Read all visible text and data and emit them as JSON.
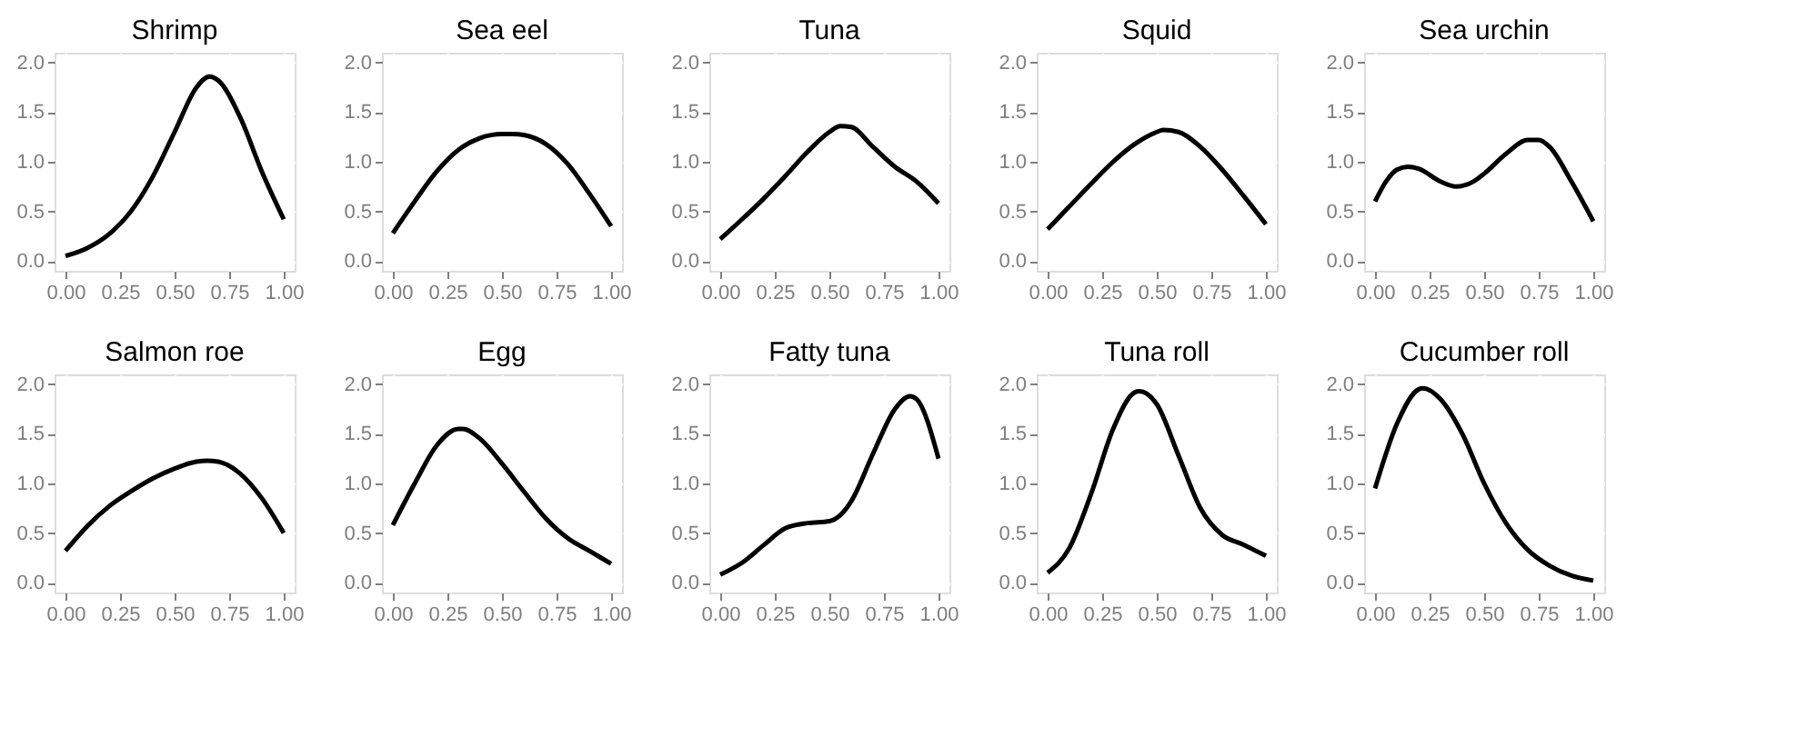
{
  "chart_data": [
    {
      "type": "line",
      "title": "Shrimp",
      "color": "#000000",
      "grid": true,
      "xlim": [
        -0.05,
        1.05
      ],
      "ylim": [
        -0.1,
        2.1
      ],
      "xticks": [
        {
          "value": 0,
          "label": "0.00"
        },
        {
          "value": 0.25,
          "label": "0.25"
        },
        {
          "value": 0.5,
          "label": "0.50"
        },
        {
          "value": 0.75,
          "label": "0.75"
        },
        {
          "value": 1,
          "label": "1.00"
        }
      ],
      "yticks": [
        {
          "value": 0,
          "label": "0.0"
        },
        {
          "value": 0.5,
          "label": "0.5"
        },
        {
          "value": 1,
          "label": "1.0"
        },
        {
          "value": 1.5,
          "label": "1.5"
        },
        {
          "value": 2,
          "label": "2.0"
        }
      ],
      "x": [
        0,
        0.1,
        0.2,
        0.3,
        0.4,
        0.5,
        0.6,
        0.66,
        0.7,
        0.8,
        0.9,
        1.0
      ],
      "values": [
        0.05,
        0.13,
        0.27,
        0.5,
        0.85,
        1.3,
        1.75,
        1.86,
        1.82,
        1.45,
        0.9,
        0.42
      ]
    },
    {
      "type": "line",
      "title": "Sea eel",
      "color": "#000000",
      "grid": true,
      "xlim": [
        -0.05,
        1.05
      ],
      "ylim": [
        -0.1,
        2.1
      ],
      "xticks": [
        {
          "value": 0,
          "label": "0.00"
        },
        {
          "value": 0.25,
          "label": "0.25"
        },
        {
          "value": 0.5,
          "label": "0.50"
        },
        {
          "value": 0.75,
          "label": "0.75"
        },
        {
          "value": 1,
          "label": "1.00"
        }
      ],
      "yticks": [
        {
          "value": 0,
          "label": "0.0"
        },
        {
          "value": 0.5,
          "label": "0.5"
        },
        {
          "value": 1,
          "label": "1.0"
        },
        {
          "value": 1.5,
          "label": "1.5"
        },
        {
          "value": 2,
          "label": "2.0"
        }
      ],
      "x": [
        0,
        0.1,
        0.2,
        0.3,
        0.4,
        0.5,
        0.55,
        0.6,
        0.7,
        0.8,
        0.9,
        1.0
      ],
      "values": [
        0.28,
        0.6,
        0.9,
        1.12,
        1.24,
        1.28,
        1.28,
        1.27,
        1.18,
        0.98,
        0.68,
        0.35
      ]
    },
    {
      "type": "line",
      "title": "Tuna",
      "color": "#000000",
      "grid": true,
      "xlim": [
        -0.05,
        1.05
      ],
      "ylim": [
        -0.1,
        2.1
      ],
      "xticks": [
        {
          "value": 0,
          "label": "0.00"
        },
        {
          "value": 0.25,
          "label": "0.25"
        },
        {
          "value": 0.5,
          "label": "0.50"
        },
        {
          "value": 0.75,
          "label": "0.75"
        },
        {
          "value": 1,
          "label": "1.00"
        }
      ],
      "yticks": [
        {
          "value": 0,
          "label": "0.0"
        },
        {
          "value": 0.5,
          "label": "0.5"
        },
        {
          "value": 1,
          "label": "1.0"
        },
        {
          "value": 1.5,
          "label": "1.5"
        },
        {
          "value": 2,
          "label": "2.0"
        }
      ],
      "x": [
        0,
        0.1,
        0.2,
        0.3,
        0.4,
        0.5,
        0.55,
        0.6,
        0.7,
        0.8,
        0.9,
        1.0
      ],
      "values": [
        0.22,
        0.42,
        0.63,
        0.86,
        1.1,
        1.3,
        1.36,
        1.35,
        1.15,
        0.95,
        0.8,
        0.58
      ]
    },
    {
      "type": "line",
      "title": "Squid",
      "color": "#000000",
      "grid": true,
      "xlim": [
        -0.05,
        1.05
      ],
      "ylim": [
        -0.1,
        2.1
      ],
      "xticks": [
        {
          "value": 0,
          "label": "0.00"
        },
        {
          "value": 0.25,
          "label": "0.25"
        },
        {
          "value": 0.5,
          "label": "0.50"
        },
        {
          "value": 0.75,
          "label": "0.75"
        },
        {
          "value": 1,
          "label": "1.00"
        }
      ],
      "yticks": [
        {
          "value": 0,
          "label": "0.0"
        },
        {
          "value": 0.5,
          "label": "0.5"
        },
        {
          "value": 1,
          "label": "1.0"
        },
        {
          "value": 1.5,
          "label": "1.5"
        },
        {
          "value": 2,
          "label": "2.0"
        }
      ],
      "x": [
        0,
        0.1,
        0.2,
        0.3,
        0.4,
        0.5,
        0.53,
        0.6,
        0.7,
        0.8,
        0.9,
        1.0
      ],
      "values": [
        0.32,
        0.55,
        0.78,
        1.0,
        1.18,
        1.3,
        1.32,
        1.3,
        1.15,
        0.92,
        0.65,
        0.37
      ]
    },
    {
      "type": "line",
      "title": "Sea urchin",
      "color": "#000000",
      "grid": true,
      "xlim": [
        -0.05,
        1.05
      ],
      "ylim": [
        -0.1,
        2.1
      ],
      "xticks": [
        {
          "value": 0,
          "label": "0.00"
        },
        {
          "value": 0.25,
          "label": "0.25"
        },
        {
          "value": 0.5,
          "label": "0.50"
        },
        {
          "value": 0.75,
          "label": "0.75"
        },
        {
          "value": 1,
          "label": "1.00"
        }
      ],
      "yticks": [
        {
          "value": 0,
          "label": "0.0"
        },
        {
          "value": 0.5,
          "label": "0.5"
        },
        {
          "value": 1,
          "label": "1.0"
        },
        {
          "value": 1.5,
          "label": "1.5"
        },
        {
          "value": 2,
          "label": "2.0"
        }
      ],
      "x": [
        0,
        0.05,
        0.1,
        0.15,
        0.2,
        0.3,
        0.37,
        0.45,
        0.5,
        0.6,
        0.7,
        0.75,
        0.8,
        0.9,
        1.0
      ],
      "values": [
        0.6,
        0.8,
        0.92,
        0.95,
        0.93,
        0.8,
        0.75,
        0.8,
        0.88,
        1.08,
        1.22,
        1.22,
        1.15,
        0.8,
        0.4
      ]
    },
    {
      "type": "line",
      "title": "Salmon roe",
      "color": "#000000",
      "grid": true,
      "xlim": [
        -0.05,
        1.05
      ],
      "ylim": [
        -0.1,
        2.1
      ],
      "xticks": [
        {
          "value": 0,
          "label": "0.00"
        },
        {
          "value": 0.25,
          "label": "0.25"
        },
        {
          "value": 0.5,
          "label": "0.50"
        },
        {
          "value": 0.75,
          "label": "0.75"
        },
        {
          "value": 1,
          "label": "1.00"
        }
      ],
      "yticks": [
        {
          "value": 0,
          "label": "0.0"
        },
        {
          "value": 0.5,
          "label": "0.5"
        },
        {
          "value": 1,
          "label": "1.0"
        },
        {
          "value": 1.5,
          "label": "1.5"
        },
        {
          "value": 2,
          "label": "2.0"
        }
      ],
      "x": [
        0,
        0.1,
        0.2,
        0.3,
        0.4,
        0.5,
        0.6,
        0.65,
        0.7,
        0.8,
        0.9,
        1.0
      ],
      "values": [
        0.32,
        0.57,
        0.77,
        0.92,
        1.05,
        1.15,
        1.22,
        1.23,
        1.22,
        1.1,
        0.85,
        0.5
      ]
    },
    {
      "type": "line",
      "title": "Egg",
      "color": "#000000",
      "grid": true,
      "xlim": [
        -0.05,
        1.05
      ],
      "ylim": [
        -0.1,
        2.1
      ],
      "xticks": [
        {
          "value": 0,
          "label": "0.00"
        },
        {
          "value": 0.25,
          "label": "0.25"
        },
        {
          "value": 0.5,
          "label": "0.50"
        },
        {
          "value": 0.75,
          "label": "0.75"
        },
        {
          "value": 1,
          "label": "1.00"
        }
      ],
      "yticks": [
        {
          "value": 0,
          "label": "0.0"
        },
        {
          "value": 0.5,
          "label": "0.5"
        },
        {
          "value": 1,
          "label": "1.0"
        },
        {
          "value": 1.5,
          "label": "1.5"
        },
        {
          "value": 2,
          "label": "2.0"
        }
      ],
      "x": [
        0,
        0.1,
        0.2,
        0.3,
        0.32,
        0.4,
        0.5,
        0.6,
        0.7,
        0.8,
        0.9,
        1.0
      ],
      "values": [
        0.58,
        1.0,
        1.38,
        1.55,
        1.55,
        1.45,
        1.2,
        0.92,
        0.65,
        0.45,
        0.32,
        0.19
      ]
    },
    {
      "type": "line",
      "title": "Fatty tuna",
      "color": "#000000",
      "grid": true,
      "xlim": [
        -0.05,
        1.05
      ],
      "ylim": [
        -0.1,
        2.1
      ],
      "xticks": [
        {
          "value": 0,
          "label": "0.00"
        },
        {
          "value": 0.25,
          "label": "0.25"
        },
        {
          "value": 0.5,
          "label": "0.50"
        },
        {
          "value": 0.75,
          "label": "0.75"
        },
        {
          "value": 1,
          "label": "1.00"
        }
      ],
      "yticks": [
        {
          "value": 0,
          "label": "0.0"
        },
        {
          "value": 0.5,
          "label": "0.5"
        },
        {
          "value": 1,
          "label": "1.0"
        },
        {
          "value": 1.5,
          "label": "1.5"
        },
        {
          "value": 2,
          "label": "2.0"
        }
      ],
      "x": [
        0,
        0.1,
        0.2,
        0.3,
        0.4,
        0.5,
        0.55,
        0.6,
        0.7,
        0.8,
        0.87,
        0.9,
        1.0
      ],
      "values": [
        0.08,
        0.2,
        0.38,
        0.55,
        0.6,
        0.62,
        0.68,
        0.82,
        1.3,
        1.75,
        1.88,
        1.85,
        1.25
      ]
    },
    {
      "type": "line",
      "title": "Tuna roll",
      "color": "#000000",
      "grid": true,
      "xlim": [
        -0.05,
        1.05
      ],
      "ylim": [
        -0.1,
        2.1
      ],
      "xticks": [
        {
          "value": 0,
          "label": "0.00"
        },
        {
          "value": 0.25,
          "label": "0.25"
        },
        {
          "value": 0.5,
          "label": "0.50"
        },
        {
          "value": 0.75,
          "label": "0.75"
        },
        {
          "value": 1,
          "label": "1.00"
        }
      ],
      "yticks": [
        {
          "value": 0,
          "label": "0.0"
        },
        {
          "value": 0.5,
          "label": "0.5"
        },
        {
          "value": 1,
          "label": "1.0"
        },
        {
          "value": 1.5,
          "label": "1.5"
        },
        {
          "value": 2,
          "label": "2.0"
        }
      ],
      "x": [
        0,
        0.1,
        0.2,
        0.3,
        0.4,
        0.42,
        0.5,
        0.6,
        0.7,
        0.8,
        0.9,
        1.0
      ],
      "values": [
        0.1,
        0.35,
        0.9,
        1.55,
        1.92,
        1.93,
        1.8,
        1.28,
        0.75,
        0.48,
        0.38,
        0.27
      ]
    },
    {
      "type": "line",
      "title": "Cucumber roll",
      "color": "#000000",
      "grid": true,
      "xlim": [
        -0.05,
        1.05
      ],
      "ylim": [
        -0.1,
        2.1
      ],
      "xticks": [
        {
          "value": 0,
          "label": "0.00"
        },
        {
          "value": 0.25,
          "label": "0.25"
        },
        {
          "value": 0.5,
          "label": "0.50"
        },
        {
          "value": 0.75,
          "label": "0.75"
        },
        {
          "value": 1,
          "label": "1.00"
        }
      ],
      "yticks": [
        {
          "value": 0,
          "label": "0.0"
        },
        {
          "value": 0.5,
          "label": "0.5"
        },
        {
          "value": 1,
          "label": "1.0"
        },
        {
          "value": 1.5,
          "label": "1.5"
        },
        {
          "value": 2,
          "label": "2.0"
        }
      ],
      "x": [
        0,
        0.1,
        0.2,
        0.22,
        0.3,
        0.4,
        0.5,
        0.6,
        0.7,
        0.8,
        0.9,
        1.0
      ],
      "values": [
        0.95,
        1.6,
        1.95,
        1.96,
        1.85,
        1.5,
        1.0,
        0.6,
        0.33,
        0.17,
        0.07,
        0.02
      ]
    }
  ]
}
